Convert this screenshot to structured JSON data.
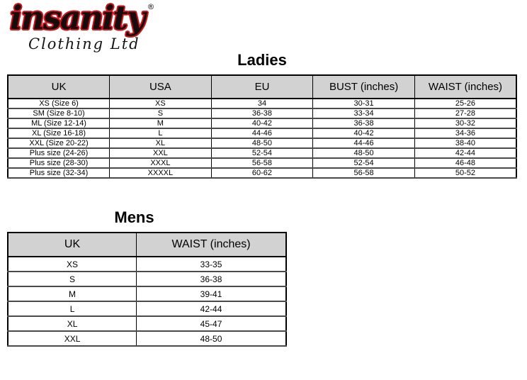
{
  "logo": {
    "brand": "insanity",
    "registered": "®",
    "subtitle": "Clothing Ltd"
  },
  "colors": {
    "logo_red": "#c8161d",
    "logo_black": "#170b0c",
    "table_header_bg": "#d2d2d2",
    "table_border": "#000000",
    "row_separator": "#4a4a4a"
  },
  "ladies": {
    "title": "Ladies",
    "headers": [
      "UK",
      "USA",
      "EU",
      "BUST (inches)",
      "WAIST (inches)"
    ],
    "rows": [
      [
        "XS (Size 6)",
        "XS",
        "34",
        "30-31",
        "25-26"
      ],
      [
        "SM (Size 8-10)",
        "S",
        "36-38",
        "33-34",
        "27-28"
      ],
      [
        "ML (Size 12-14)",
        "M",
        "40-42",
        "36-38",
        "30-32"
      ],
      [
        "XL (Size 16-18)",
        "L",
        "44-46",
        "40-42",
        "34-36"
      ],
      [
        "XXL (Size 20-22)",
        "XL",
        "48-50",
        "44-46",
        "38-40"
      ],
      [
        "Plus size (24-26)",
        "XXL",
        "52-54",
        "48-50",
        "42-44"
      ],
      [
        "Plus size (28-30)",
        "XXXL",
        "56-58",
        "52-54",
        "46-48"
      ],
      [
        "Plus size (32-34)",
        "XXXXL",
        "60-62",
        "56-58",
        "50-52"
      ]
    ]
  },
  "mens": {
    "title": "Mens",
    "headers": [
      "UK",
      "WAIST (inches)"
    ],
    "rows": [
      [
        "XS",
        "33-35"
      ],
      [
        "S",
        "36-38"
      ],
      [
        "M",
        "39-41"
      ],
      [
        "L",
        "42-44"
      ],
      [
        "XL",
        "45-47"
      ],
      [
        "XXL",
        "48-50"
      ]
    ]
  }
}
